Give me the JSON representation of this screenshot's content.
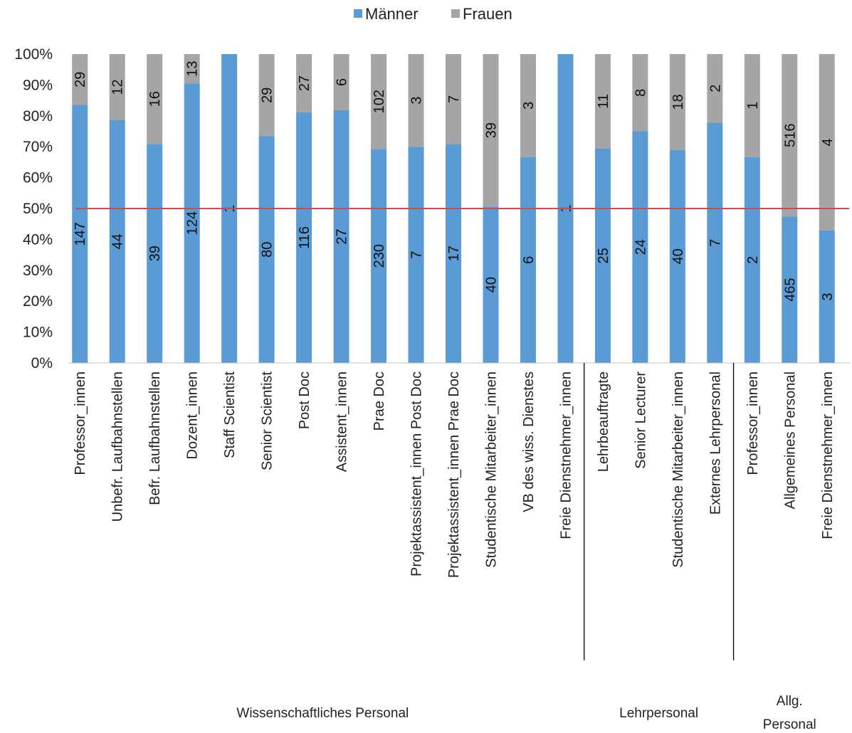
{
  "chart_data": {
    "type": "bar",
    "stacked": "percent",
    "categories": [
      "Professor_innen",
      "Unbefr. Laufbahnstellen",
      "Befr. Laufbahnstellen",
      "Dozent_innen",
      "Staff Scientist",
      "Senior Scientist",
      "Post Doc",
      "Assistent_innen",
      "Prae Doc",
      "Projektassistent_innen Post Doc",
      "Projektassistent_innen Prae Doc",
      "Studentische Mitarbeiter_innen",
      "VB des wiss. Dienstes",
      "Freie Dienstnehmer_innen",
      "Lehrbeauftragte",
      "Senior Lecturer",
      "Studentische Mitarbeiter_innen",
      "Externes Lehrpersonal",
      "Professor_innen",
      "Allgemeines Personal",
      "Freie Dienstnehmer_innen"
    ],
    "series": [
      {
        "name": "Männer",
        "color": "#5B9BD5",
        "values": [
          147,
          44,
          39,
          124,
          1,
          80,
          116,
          27,
          230,
          7,
          17,
          40,
          6,
          1,
          25,
          24,
          40,
          7,
          2,
          465,
          3
        ]
      },
      {
        "name": "Frauen",
        "color": "#A5A5A5",
        "values": [
          29,
          12,
          16,
          13,
          0,
          29,
          27,
          6,
          102,
          3,
          7,
          39,
          3,
          0,
          11,
          8,
          18,
          2,
          1,
          516,
          4
        ]
      }
    ],
    "y_ticks": [
      "0%",
      "10%",
      "20%",
      "30%",
      "40%",
      "50%",
      "60%",
      "70%",
      "80%",
      "90%",
      "100%"
    ],
    "ylim": [
      0,
      100
    ],
    "reference_line": {
      "value": 50,
      "color": "#C0504D"
    },
    "groups": [
      {
        "label": "Wissenschaftliches Personal",
        "lines": [
          "Wissenschaftliches Personal"
        ],
        "start": 0,
        "end": 13
      },
      {
        "label": "Lehrpersonal",
        "lines": [
          "Lehrpersonal"
        ],
        "start": 14,
        "end": 17
      },
      {
        "label": "Allg. Personal",
        "lines": [
          "Allg.",
          "Personal"
        ],
        "start": 18,
        "end": 20
      }
    ],
    "legend": {
      "position": "top"
    },
    "grid": false
  }
}
